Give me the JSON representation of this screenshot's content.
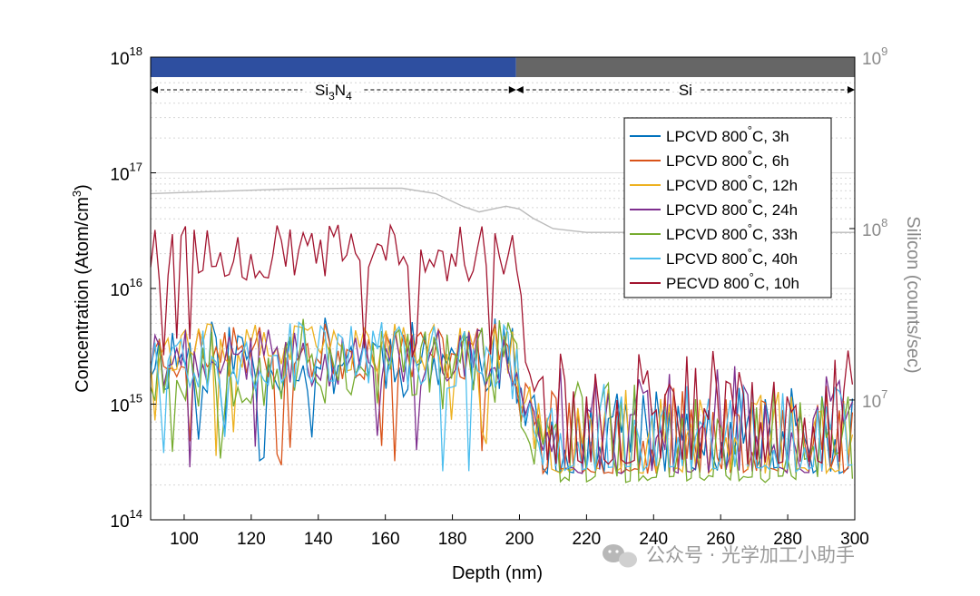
{
  "chart_data": {
    "type": "line",
    "title": "",
    "xlabel": "Depth (nm)",
    "ylabel": "Concentration (Atom/cm",
    "ylabel_sup": "3",
    "ylabel_close": ")",
    "y2label": "Silicon (counts/sec)",
    "xlim": [
      90,
      300
    ],
    "ylim_left": [
      100000000000000.0,
      1e+18
    ],
    "ylim_right": [
      2000000.0,
      1000000000.0
    ],
    "x_ticks": [
      "100",
      "120",
      "140",
      "160",
      "180",
      "200",
      "220",
      "240",
      "260",
      "280",
      "300"
    ],
    "y_left_ticks": [
      {
        "base": "10",
        "exp": "14"
      },
      {
        "base": "10",
        "exp": "15"
      },
      {
        "base": "10",
        "exp": "16"
      },
      {
        "base": "10",
        "exp": "17"
      },
      {
        "base": "10",
        "exp": "18"
      }
    ],
    "y_right_ticks": [
      {
        "base": "10",
        "exp": "7"
      },
      {
        "base": "10",
        "exp": "8"
      },
      {
        "base": "10",
        "exp": "9"
      }
    ],
    "regions": [
      {
        "name_main": "Si",
        "name_sub": "3",
        "name_main2": "N",
        "name_sub2": "4",
        "from": 90,
        "to": 199,
        "color": "#2e4fa0"
      },
      {
        "name_main": "Si",
        "name_sub": "",
        "name_main2": "",
        "name_sub2": "",
        "from": 199,
        "to": 300,
        "color": "#666666"
      }
    ],
    "series": [
      {
        "name": "LPCVD 800",
        "deg": "°",
        "rest": "C, 3h",
        "color": "#0072BD",
        "seed": 11,
        "pre_level": 2600000000000000.0,
        "pre_spread": 0.35,
        "post_level": 500000000000000.0,
        "post_spread": 0.32,
        "post_floor": 250000000000000.0
      },
      {
        "name": "LPCVD 800",
        "deg": "°",
        "rest": "C, 6h",
        "color": "#D95319",
        "seed": 23,
        "pre_level": 2800000000000000.0,
        "pre_spread": 0.25,
        "post_level": 500000000000000.0,
        "post_spread": 0.32,
        "post_floor": 250000000000000.0
      },
      {
        "name": "LPCVD 800",
        "deg": "°",
        "rest": "C, 12h",
        "color": "#EDB120",
        "seed": 37,
        "pre_level": 3000000000000000.0,
        "pre_spread": 0.22,
        "post_level": 500000000000000.0,
        "post_spread": 0.32,
        "post_floor": 250000000000000.0
      },
      {
        "name": "LPCVD 800",
        "deg": "°",
        "rest": "C, 24h",
        "color": "#7E2F8E",
        "seed": 41,
        "pre_level": 2500000000000000.0,
        "pre_spread": 0.25,
        "post_level": 600000000000000.0,
        "post_spread": 0.4,
        "post_floor": 250000000000000.0
      },
      {
        "name": "LPCVD 800",
        "deg": "°",
        "rest": "C, 33h",
        "color": "#77AC30",
        "seed": 53,
        "pre_level": 2200000000000000.0,
        "pre_spread": 0.4,
        "post_level": 500000000000000.0,
        "post_spread": 0.35,
        "post_floor": 210000000000000.0
      },
      {
        "name": "LPCVD 800",
        "deg": "°",
        "rest": "C, 40h",
        "color": "#4DBEEE",
        "seed": 67,
        "pre_level": 2600000000000000.0,
        "pre_spread": 0.3,
        "post_level": 550000000000000.0,
        "post_spread": 0.32,
        "post_floor": 260000000000000.0
      },
      {
        "name": "PECVD 800",
        "deg": "°",
        "rest": "C, 10h",
        "color": "#A2142F",
        "seed": 79,
        "pre_level": 2e+16,
        "pre_spread": 0.25,
        "post_level": 1000000000000000.0,
        "post_spread": 0.35,
        "post_floor": 300000000000000.0
      }
    ],
    "silicon_reference": {
      "color": "#bbbbbb",
      "points": [
        [
          90,
          160000000.0
        ],
        [
          110,
          165000000.0
        ],
        [
          130,
          170000000.0
        ],
        [
          150,
          172000000.0
        ],
        [
          165,
          172000000.0
        ],
        [
          175,
          160000000.0
        ],
        [
          183,
          135000000.0
        ],
        [
          188,
          125000000.0
        ],
        [
          192,
          130000000.0
        ],
        [
          196,
          135000000.0
        ],
        [
          200,
          130000000.0
        ],
        [
          204,
          115000000.0
        ],
        [
          210,
          100000000.0
        ],
        [
          220,
          95000000.0
        ],
        [
          240,
          95000000.0
        ],
        [
          260,
          95000000.0
        ],
        [
          280,
          95000000.0
        ],
        [
          300,
          95000000.0
        ]
      ]
    }
  },
  "watermark": "公众号 · 光学加工小助手"
}
